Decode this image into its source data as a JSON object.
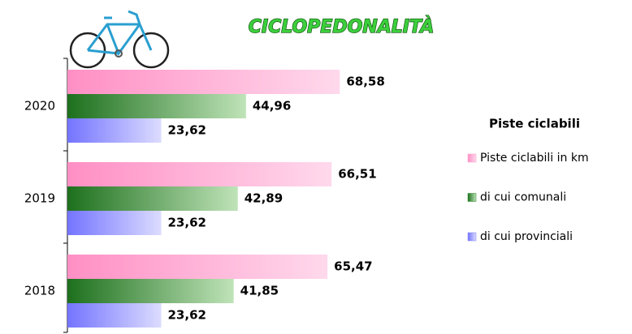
{
  "chart_data": {
    "type": "hbar",
    "title": "CICLOPEDONALITÀ",
    "categories": [
      "2020",
      "2019",
      "2018"
    ],
    "series": [
      {
        "name": "Piste ciclabili in km",
        "color": "#ff99cc",
        "values": [
          68.58,
          66.51,
          65.47
        ],
        "value_labels": [
          "68,58",
          "66,51",
          "65,47"
        ]
      },
      {
        "name": "di cui comunali",
        "color": "#228b22",
        "values": [
          44.96,
          42.89,
          41.85
        ],
        "value_labels": [
          "44,96",
          "42,89",
          "41,85"
        ]
      },
      {
        "name": "di cui provinciali",
        "color": "#8080ff",
        "values": [
          23.62,
          23.62,
          23.62
        ],
        "value_labels": [
          "23,62",
          "23,62",
          "23,62"
        ]
      }
    ],
    "legend_title": "Piste ciclabili",
    "legend": "right",
    "xlim": [
      0,
      100
    ]
  }
}
